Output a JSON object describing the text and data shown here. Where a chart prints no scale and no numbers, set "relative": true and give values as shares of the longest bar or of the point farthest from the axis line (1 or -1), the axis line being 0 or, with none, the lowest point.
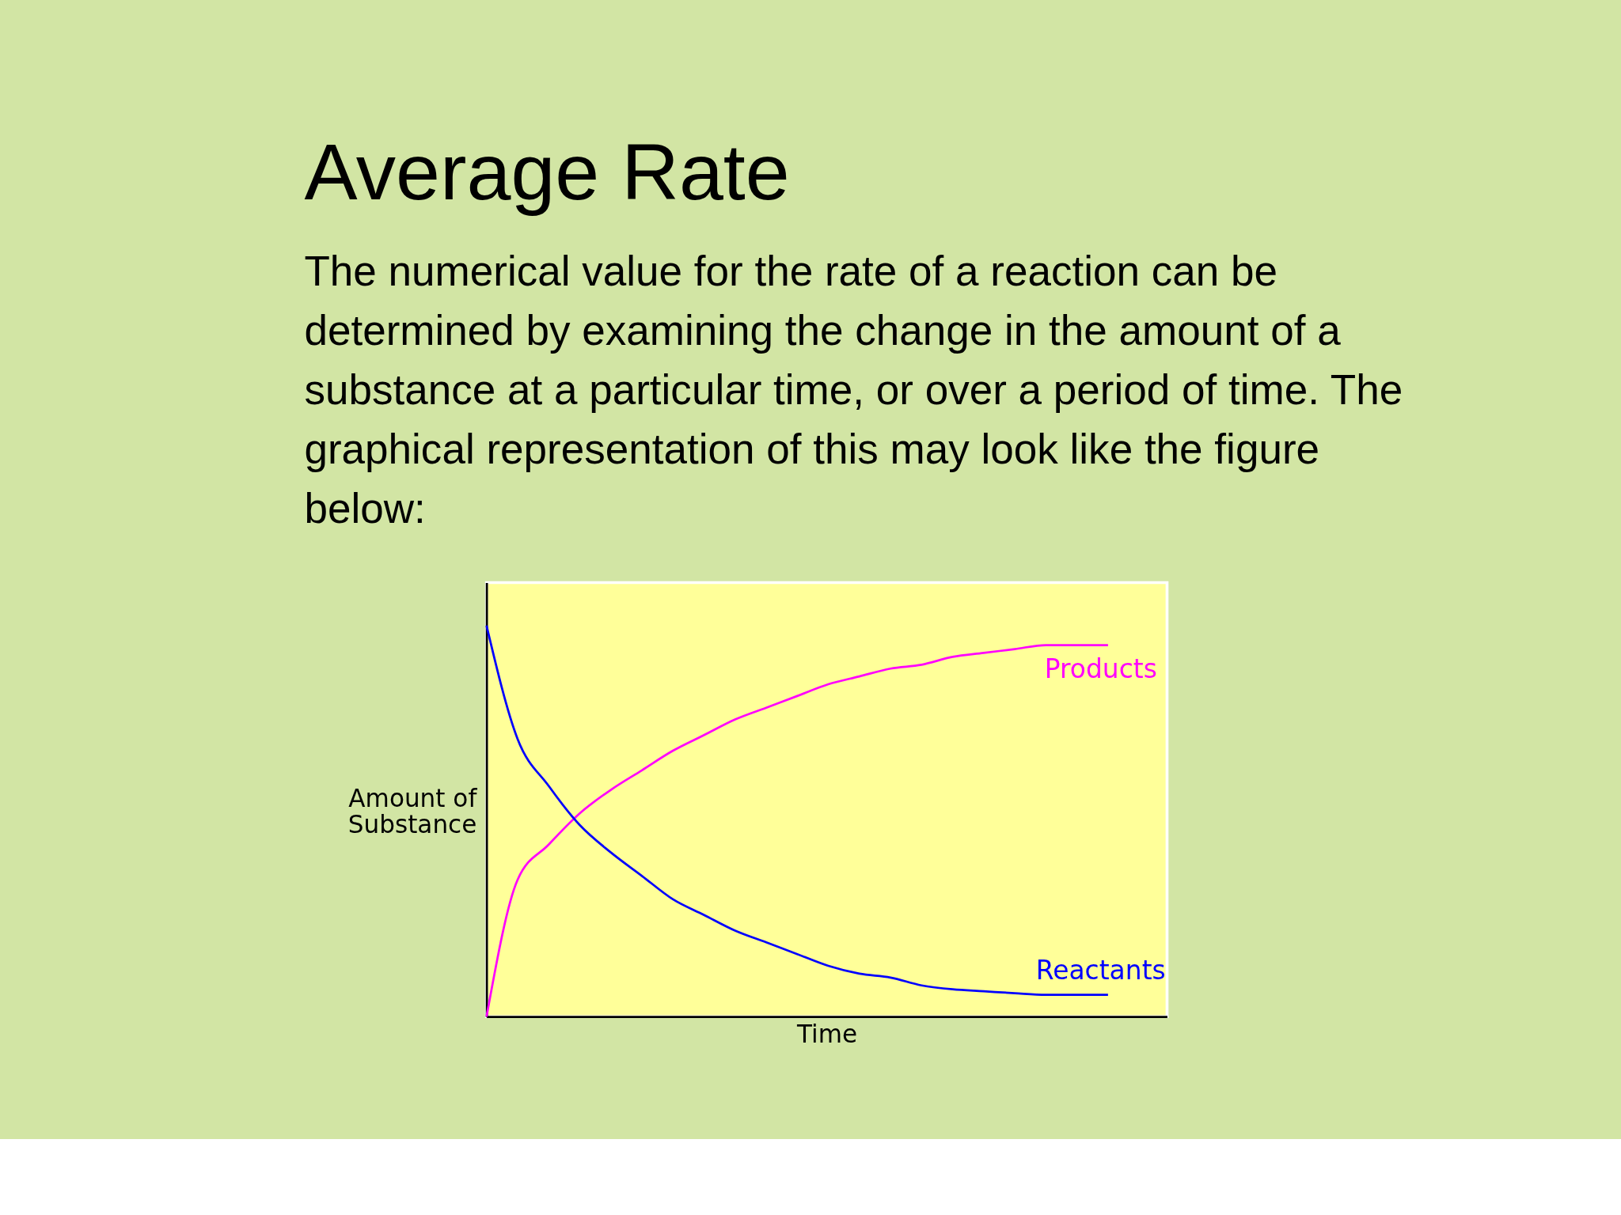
{
  "chart_data": {
    "type": "line",
    "relative": true,
    "title": "Average Rate",
    "subtitle": "The numerical value for the rate of a reaction can be determined by examining the change in the amount of a substance at a particular time, or over a period of time. The graphical representation of this may look like the figure below:",
    "xlabel": "Time",
    "ylabel": "Amount of Substance",
    "categories": [
      null,
      null,
      null,
      null,
      null,
      null,
      null,
      null,
      null,
      null,
      null,
      null,
      null,
      null,
      null,
      null,
      null,
      null,
      null,
      null,
      null
    ],
    "series": [
      {
        "name": "Products",
        "color": "#ff00ff",
        "values": [
          0,
          0.35,
          0.44,
          0.52,
          0.58,
          0.63,
          0.68,
          0.72,
          0.76,
          0.79,
          0.82,
          0.85,
          0.87,
          0.89,
          0.9,
          0.92,
          0.93,
          0.94,
          0.95,
          0.95,
          0.95
        ]
      },
      {
        "name": "Reactants",
        "color": "#0000ff",
        "values": [
          1.0,
          0.71,
          0.59,
          0.49,
          0.42,
          0.36,
          0.3,
          0.26,
          0.22,
          0.19,
          0.16,
          0.13,
          0.11,
          0.1,
          0.08,
          0.07,
          0.065,
          0.06,
          0.056,
          0.056,
          0.056
        ]
      }
    ],
    "legend": false,
    "grid": false,
    "marker": "none",
    "line_style": "solid"
  }
}
